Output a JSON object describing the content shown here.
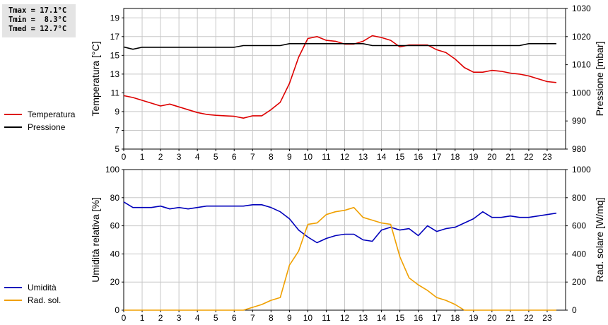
{
  "stats": {
    "tmax": "Tmax = 17.1°C",
    "tmin": "Tmin =  8.3°C",
    "tmed": "Tmed = 12.7°C"
  },
  "legend_top": [
    {
      "label": "Temperatura",
      "color": "#dd0000"
    },
    {
      "label": "Pressione",
      "color": "#000000"
    }
  ],
  "legend_bottom": [
    {
      "label": "Umidità",
      "color": "#0000bb"
    },
    {
      "label": "Rad. sol.",
      "color": "#f0a000"
    }
  ],
  "chart_data": [
    {
      "type": "line",
      "ylabel": "Temperatura [°C]",
      "y2label": "Pressione [mbar]",
      "ylim": [
        5,
        20
      ],
      "y2lim": [
        980,
        1030
      ],
      "yticks": [
        5,
        7,
        9,
        11,
        13,
        15,
        17,
        19
      ],
      "y2ticks": [
        980,
        990,
        1000,
        1010,
        1020,
        1030
      ],
      "xlim": [
        0,
        24
      ],
      "xticks": [
        0,
        1,
        2,
        3,
        4,
        5,
        6,
        7,
        8,
        9,
        10,
        11,
        12,
        13,
        14,
        15,
        16,
        17,
        18,
        19,
        20,
        21,
        22,
        23
      ],
      "grid": true,
      "series": [
        {
          "name": "Temperatura",
          "axis": "left",
          "color": "#dd0000",
          "x": [
            0,
            0.5,
            1,
            1.5,
            2,
            2.5,
            3,
            3.5,
            4,
            4.5,
            5,
            5.5,
            6,
            6.5,
            7,
            7.5,
            8,
            8.5,
            9,
            9.5,
            10,
            10.5,
            11,
            11.5,
            12,
            12.5,
            13,
            13.5,
            14,
            14.5,
            15,
            15.5,
            16,
            16.5,
            17,
            17.5,
            18,
            18.5,
            19,
            19.5,
            20,
            20.5,
            21,
            21.5,
            22,
            22.5,
            23,
            23.5
          ],
          "values": [
            10.7,
            10.5,
            10.2,
            9.9,
            9.6,
            9.8,
            9.5,
            9.2,
            8.9,
            8.7,
            8.6,
            8.55,
            8.5,
            8.3,
            8.55,
            8.55,
            9.2,
            10,
            12,
            14.8,
            16.8,
            17,
            16.6,
            16.5,
            16.2,
            16.2,
            16.5,
            17.1,
            16.9,
            16.6,
            15.9,
            16.1,
            16.1,
            16.1,
            15.6,
            15.3,
            14.6,
            13.7,
            13.2,
            13.2,
            13.4,
            13.3,
            13.1,
            13,
            12.8,
            12.5,
            12.2,
            12.1
          ]
        },
        {
          "name": "Pressione",
          "axis": "right",
          "color": "#000000",
          "x": [
            0,
            0.5,
            1,
            1.5,
            2,
            2.5,
            3,
            3.5,
            4,
            4.5,
            5,
            5.5,
            6,
            6.5,
            7,
            7.5,
            8,
            8.5,
            9,
            9.5,
            10,
            10.5,
            11,
            11.5,
            12,
            12.5,
            13,
            13.5,
            14,
            14.5,
            15,
            15.5,
            16,
            16.5,
            17,
            17.5,
            18,
            18.5,
            19,
            19.5,
            20,
            20.5,
            21,
            21.5,
            22,
            22.5,
            23,
            23.5
          ],
          "values": [
            1016.3,
            1015.5,
            1016.2,
            1016.2,
            1016.2,
            1016.2,
            1016.2,
            1016.2,
            1016.2,
            1016.2,
            1016.2,
            1016.2,
            1016.2,
            1016.8,
            1016.8,
            1016.8,
            1016.8,
            1016.8,
            1017.5,
            1017.5,
            1017.5,
            1017.5,
            1017.5,
            1017.5,
            1017.5,
            1017.5,
            1017.5,
            1016.8,
            1016.8,
            1016.8,
            1016.8,
            1016.8,
            1016.8,
            1016.8,
            1016.8,
            1016.8,
            1016.8,
            1016.8,
            1016.8,
            1016.8,
            1016.8,
            1016.8,
            1016.8,
            1016.8,
            1017.5,
            1017.5,
            1017.5,
            1017.5
          ]
        }
      ]
    },
    {
      "type": "line",
      "ylabel": "Umidità relativa [%]",
      "y2label": "Rad. solare [W/mq]",
      "ylim": [
        0,
        100
      ],
      "y2lim": [
        0,
        1000
      ],
      "yticks": [
        0,
        20,
        40,
        60,
        80,
        100
      ],
      "y2ticks": [
        0,
        200,
        400,
        600,
        800,
        1000
      ],
      "xlim": [
        0,
        24
      ],
      "xticks": [
        0,
        1,
        2,
        3,
        4,
        5,
        6,
        7,
        8,
        9,
        10,
        11,
        12,
        13,
        14,
        15,
        16,
        17,
        18,
        19,
        20,
        21,
        22,
        23
      ],
      "grid": true,
      "series": [
        {
          "name": "Umidità",
          "axis": "left",
          "color": "#0000bb",
          "x": [
            0,
            0.5,
            1,
            1.5,
            2,
            2.5,
            3,
            3.5,
            4,
            4.5,
            5,
            5.5,
            6,
            6.5,
            7,
            7.5,
            8,
            8.5,
            9,
            9.5,
            10,
            10.5,
            11,
            11.5,
            12,
            12.5,
            13,
            13.5,
            14,
            14.5,
            15,
            15.5,
            16,
            16.5,
            17,
            17.5,
            18,
            18.5,
            19,
            19.5,
            20,
            20.5,
            21,
            21.5,
            22,
            22.5,
            23,
            23.5
          ],
          "values": [
            77,
            73,
            73,
            73,
            74,
            72,
            73,
            72,
            73,
            74,
            74,
            74,
            74,
            74,
            75,
            75,
            73,
            70,
            65,
            57,
            52,
            48,
            51,
            53,
            54,
            54,
            50,
            49,
            57,
            59,
            57,
            58,
            53,
            60,
            56,
            58,
            59,
            62,
            65,
            70,
            66,
            66,
            67,
            66,
            66,
            67,
            68,
            69
          ]
        },
        {
          "name": "Rad. sol.",
          "axis": "right",
          "color": "#f0a000",
          "x": [
            0,
            0.5,
            1,
            1.5,
            2,
            2.5,
            3,
            3.5,
            4,
            4.5,
            5,
            5.5,
            6,
            6.5,
            7,
            7.5,
            8,
            8.5,
            9,
            9.5,
            10,
            10.5,
            11,
            11.5,
            12,
            12.5,
            13,
            13.5,
            14,
            14.5,
            15,
            15.5,
            16,
            16.5,
            17,
            17.5,
            18,
            18.5,
            19,
            19.5,
            20,
            20.5,
            21,
            21.5,
            22,
            22.5,
            23,
            23.5
          ],
          "values": [
            0,
            0,
            0,
            0,
            0,
            0,
            0,
            0,
            0,
            0,
            0,
            0,
            0,
            0,
            20,
            40,
            70,
            90,
            320,
            420,
            610,
            620,
            680,
            700,
            710,
            730,
            660,
            640,
            620,
            610,
            380,
            230,
            180,
            140,
            90,
            70,
            40,
            0,
            0,
            0,
            0,
            0,
            0,
            0,
            0,
            0,
            0,
            0
          ]
        }
      ]
    }
  ]
}
